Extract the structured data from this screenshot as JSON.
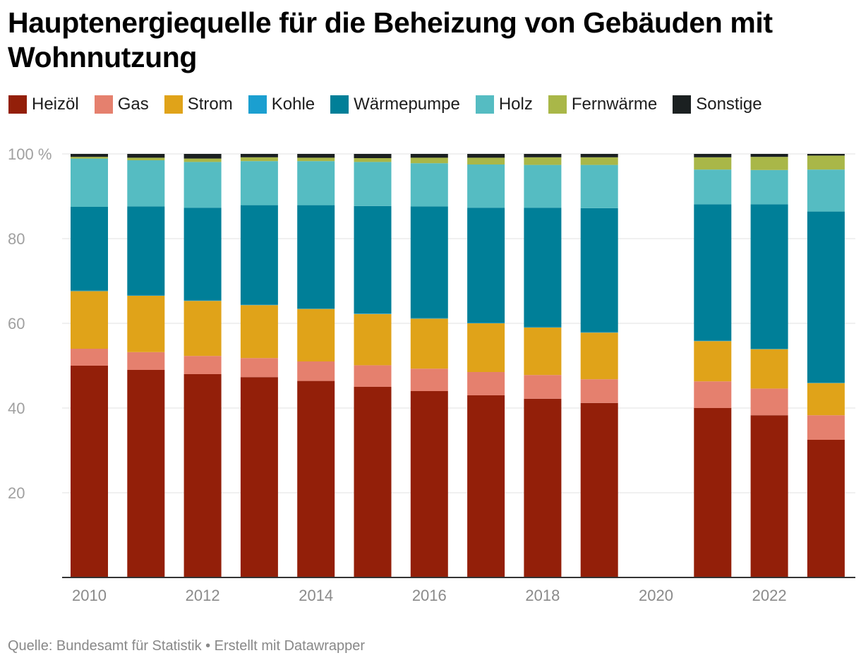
{
  "title": "Hauptenergiequelle für die Beheizung von Gebäuden mit Wohnnutzung",
  "source": "Quelle: Bundesamt für Statistik • Erstellt mit Datawrapper",
  "legend": [
    {
      "label": "Heizöl",
      "color": "#931f09"
    },
    {
      "label": "Gas",
      "color": "#e5806e"
    },
    {
      "label": "Strom",
      "color": "#e0a319"
    },
    {
      "label": "Kohle",
      "color": "#1b9fd0"
    },
    {
      "label": "Wärmepumpe",
      "color": "#007f98"
    },
    {
      "label": "Holz",
      "color": "#55bcc2"
    },
    {
      "label": "Fernwärme",
      "color": "#a9b748"
    },
    {
      "label": "Sonstige",
      "color": "#1b2021"
    }
  ],
  "chart_data": {
    "type": "bar",
    "stacked": true,
    "categories": [
      "2010",
      "2011",
      "2012",
      "2013",
      "2014",
      "2015",
      "2016",
      "2017",
      "2018",
      "2019",
      "2020",
      "2021",
      "2022",
      "2023"
    ],
    "x_tick_labels": [
      "2010",
      "2012",
      "2014",
      "2016",
      "2018",
      "2020",
      "2022"
    ],
    "y_ticks": [
      20,
      40,
      60,
      80,
      100
    ],
    "y_tick_labels": [
      "20",
      "40",
      "60",
      "80",
      "100 %"
    ],
    "ylim": [
      0,
      100
    ],
    "series": [
      {
        "name": "Heizöl",
        "color": "#931f09",
        "values": [
          50.0,
          49.0,
          48.0,
          47.3,
          46.4,
          45.0,
          44.0,
          43.0,
          42.2,
          41.2,
          null,
          40.0,
          38.3,
          32.5
        ]
      },
      {
        "name": "Gas",
        "color": "#e5806e",
        "values": [
          4.0,
          4.2,
          4.3,
          4.5,
          4.6,
          5.1,
          5.3,
          5.5,
          5.6,
          5.6,
          null,
          6.3,
          6.3,
          5.8
        ]
      },
      {
        "name": "Strom",
        "color": "#e0a319",
        "values": [
          13.6,
          13.3,
          13.0,
          12.5,
          12.4,
          12.1,
          11.8,
          11.5,
          11.2,
          11.0,
          null,
          9.5,
          9.3,
          7.6
        ]
      },
      {
        "name": "Kohle",
        "color": "#1b9fd0",
        "values": [
          0.1,
          0.1,
          0.1,
          0.1,
          0.1,
          0.1,
          0.1,
          0.1,
          0.1,
          0.1,
          null,
          0.1,
          0.1,
          0.1
        ]
      },
      {
        "name": "Wärmepumpe",
        "color": "#007f98",
        "values": [
          19.8,
          21.0,
          21.9,
          23.5,
          24.4,
          25.4,
          26.4,
          27.2,
          28.2,
          29.3,
          null,
          32.2,
          34.1,
          40.4
        ]
      },
      {
        "name": "Holz",
        "color": "#55bcc2",
        "values": [
          11.4,
          10.9,
          10.8,
          10.4,
          10.4,
          10.4,
          10.2,
          10.2,
          10.1,
          10.2,
          null,
          8.2,
          8.1,
          9.9
        ]
      },
      {
        "name": "Fernwärme",
        "color": "#a9b748",
        "values": [
          0.4,
          0.6,
          0.8,
          0.9,
          0.8,
          0.9,
          1.3,
          1.6,
          1.8,
          1.8,
          null,
          2.9,
          3.1,
          3.3
        ]
      },
      {
        "name": "Sonstige",
        "color": "#1b2021",
        "values": [
          0.7,
          0.9,
          1.1,
          0.8,
          0.9,
          1.0,
          0.9,
          0.9,
          0.8,
          0.8,
          null,
          0.8,
          0.7,
          0.4
        ]
      }
    ]
  }
}
